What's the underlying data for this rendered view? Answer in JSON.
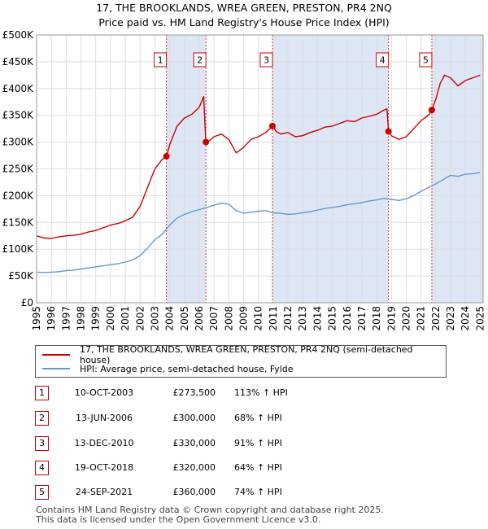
{
  "title": "17, THE BROOKLANDS, WREA GREEN, PRESTON, PR4 2NQ",
  "subtitle": "Price paid vs. HM Land Registry's House Price Index (HPI)",
  "colors": {
    "property": "#cc0000",
    "hpi": "#6699cc",
    "shade": "#dde6f5",
    "grid": "#dddddd"
  },
  "legend": {
    "property": "17, THE BROOKLANDS, WREA GREEN, PRESTON, PR4 2NQ (semi-detached house)",
    "hpi": "HPI: Average price, semi-detached house, Fylde"
  },
  "sales": [
    {
      "num": "1",
      "date": "10-OCT-2003",
      "price": "£273,500",
      "hpi": "113% ↑ HPI"
    },
    {
      "num": "2",
      "date": "13-JUN-2006",
      "price": "£300,000",
      "hpi": "68% ↑ HPI"
    },
    {
      "num": "3",
      "date": "13-DEC-2010",
      "price": "£330,000",
      "hpi": "91% ↑ HPI"
    },
    {
      "num": "4",
      "date": "19-OCT-2018",
      "price": "£320,000",
      "hpi": "64% ↑ HPI"
    },
    {
      "num": "5",
      "date": "24-SEP-2021",
      "price": "£360,000",
      "hpi": "74% ↑ HPI"
    }
  ],
  "footer": {
    "line1": "Contains HM Land Registry data © Crown copyright and database right 2025.",
    "line2": "This data is licensed under the Open Government Licence v3.0."
  },
  "chart_data": {
    "type": "line",
    "xlim": [
      1995,
      2025.2
    ],
    "ylim": [
      0,
      500000
    ],
    "grid": true,
    "legend_position": "below",
    "y_ticks": [
      0,
      50000,
      100000,
      150000,
      200000,
      250000,
      300000,
      350000,
      400000,
      450000,
      500000
    ],
    "y_tick_labels": [
      "£0",
      "£50K",
      "£100K",
      "£150K",
      "£200K",
      "£250K",
      "£300K",
      "£350K",
      "£400K",
      "£450K",
      "£500K"
    ],
    "x_ticks": [
      1995,
      1996,
      1997,
      1998,
      1999,
      2000,
      2001,
      2002,
      2003,
      2004,
      2005,
      2006,
      2007,
      2008,
      2009,
      2010,
      2011,
      2012,
      2013,
      2014,
      2015,
      2016,
      2017,
      2018,
      2019,
      2020,
      2021,
      2022,
      2023,
      2024,
      2025
    ],
    "x_tick_labels": [
      "1995",
      "1996",
      "1997",
      "1998",
      "1999",
      "2000",
      "2001",
      "2002",
      "2003",
      "2004",
      "2005",
      "2006",
      "2007",
      "2008",
      "2009",
      "2010",
      "2011",
      "2012",
      "2013",
      "2014",
      "2015",
      "2016",
      "2017",
      "2018",
      "2019",
      "2020",
      "2021",
      "2022",
      "2023",
      "2024",
      "2025"
    ],
    "shaded_spans": [
      [
        2003.78,
        2006.45
      ],
      [
        2010.95,
        2018.8
      ],
      [
        2021.73,
        2025.2
      ]
    ],
    "sale_points": [
      {
        "label": "1",
        "x": 2003.78,
        "y": 273500
      },
      {
        "label": "2",
        "x": 2006.45,
        "y": 300000
      },
      {
        "label": "3",
        "x": 2010.95,
        "y": 330000
      },
      {
        "label": "4",
        "x": 2018.8,
        "y": 320000
      },
      {
        "label": "5",
        "x": 2021.73,
        "y": 360000
      }
    ],
    "series": [
      {
        "name": "17, THE BROOKLANDS, WREA GREEN, PRESTON, PR4 2NQ (semi-detached house)",
        "x": [
          1995,
          1995.5,
          1996,
          1996.5,
          1997,
          1997.5,
          1998,
          1998.5,
          1999,
          1999.5,
          2000,
          2000.5,
          2001,
          2001.5,
          2002,
          2002.5,
          2003,
          2003.5,
          2003.78,
          2004,
          2004.5,
          2005,
          2005.5,
          2006,
          2006.3,
          2006.45,
          2006.7,
          2007,
          2007.5,
          2008,
          2008.5,
          2009,
          2009.5,
          2010,
          2010.5,
          2010.95,
          2011.2,
          2011.5,
          2012,
          2012.5,
          2013,
          2013.5,
          2014,
          2014.5,
          2015,
          2015.5,
          2016,
          2016.5,
          2017,
          2017.5,
          2018,
          2018.5,
          2018.7,
          2018.8,
          2019,
          2019.5,
          2020,
          2020.5,
          2021,
          2021.5,
          2021.73,
          2022,
          2022.3,
          2022.6,
          2023,
          2023.5,
          2024,
          2024.5,
          2025
        ],
        "y": [
          125000,
          121000,
          120000,
          123000,
          125000,
          126000,
          128000,
          132000,
          135000,
          140000,
          145000,
          148000,
          153000,
          160000,
          180000,
          215000,
          250000,
          268000,
          273500,
          295000,
          330000,
          345000,
          352000,
          365000,
          385000,
          300000,
          303000,
          310000,
          315000,
          305000,
          280000,
          290000,
          305000,
          310000,
          318000,
          330000,
          320000,
          315000,
          318000,
          310000,
          312000,
          318000,
          322000,
          328000,
          330000,
          335000,
          340000,
          338000,
          345000,
          348000,
          352000,
          360000,
          362000,
          320000,
          312000,
          305000,
          310000,
          325000,
          340000,
          350000,
          360000,
          380000,
          410000,
          425000,
          420000,
          405000,
          415000,
          420000,
          425000
        ]
      },
      {
        "name": "HPI: Average price, semi-detached house, Fylde",
        "x": [
          1995,
          1995.5,
          1996,
          1996.5,
          1997,
          1997.5,
          1998,
          1998.5,
          1999,
          1999.5,
          2000,
          2000.5,
          2001,
          2001.5,
          2002,
          2002.5,
          2003,
          2003.5,
          2004,
          2004.5,
          2005,
          2005.5,
          2006,
          2006.5,
          2007,
          2007.5,
          2008,
          2008.5,
          2009,
          2009.5,
          2010,
          2010.5,
          2011,
          2011.5,
          2012,
          2012.5,
          2013,
          2013.5,
          2014,
          2014.5,
          2015,
          2015.5,
          2016,
          2016.5,
          2017,
          2017.5,
          2018,
          2018.5,
          2019,
          2019.5,
          2020,
          2020.5,
          2021,
          2021.5,
          2022,
          2022.5,
          2023,
          2023.5,
          2024,
          2024.5,
          2025
        ],
        "y": [
          57000,
          56500,
          57000,
          58000,
          60000,
          61000,
          63000,
          65000,
          67000,
          69000,
          71000,
          73000,
          76000,
          80000,
          88000,
          102000,
          118000,
          128000,
          145000,
          158000,
          165000,
          170000,
          174000,
          178000,
          182000,
          186000,
          184000,
          172000,
          167000,
          169000,
          171000,
          172000,
          168000,
          167000,
          165000,
          166000,
          168000,
          170000,
          173000,
          176000,
          178000,
          180000,
          183000,
          185000,
          187000,
          190000,
          192000,
          195000,
          193000,
          191000,
          194000,
          200000,
          208000,
          215000,
          222000,
          230000,
          238000,
          236000,
          240000,
          241000,
          243000
        ]
      }
    ]
  }
}
